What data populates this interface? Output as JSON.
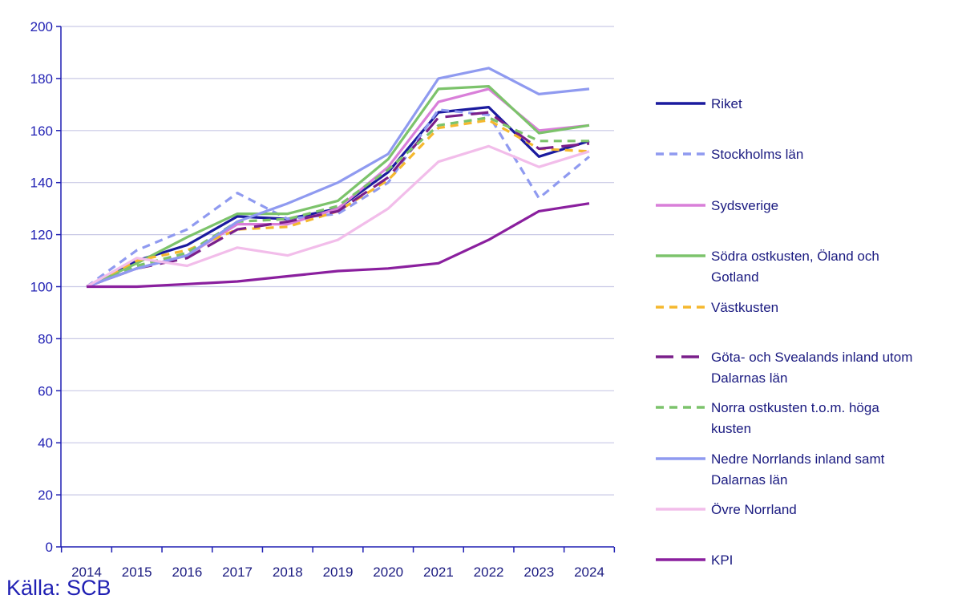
{
  "source": "Källa: SCB",
  "chart_data": {
    "type": "line",
    "title": "",
    "xlabel": "",
    "ylabel": "",
    "ylim": [
      0,
      200
    ],
    "yticks": [
      0,
      20,
      40,
      60,
      80,
      100,
      120,
      140,
      160,
      180,
      200
    ],
    "x": [
      "2014",
      "2015",
      "2016",
      "2017",
      "2018",
      "2019",
      "2020",
      "2021",
      "2022",
      "2023",
      "2024"
    ],
    "grid": "horizontal",
    "legend_position": "right",
    "series": [
      {
        "name": "Riket",
        "color": "#1a1a9e",
        "dash": "solid",
        "values": [
          100,
          110,
          116,
          127,
          126,
          130,
          144,
          167,
          169,
          150,
          156
        ]
      },
      {
        "name": "Stockholms län",
        "color": "#8f9af0",
        "dash": "dashed",
        "values": [
          100,
          114,
          122,
          136,
          126,
          128,
          140,
          168,
          166,
          134,
          150
        ]
      },
      {
        "name": "Sydsverige",
        "color": "#d97fd9",
        "dash": "solid",
        "values": [
          100,
          107,
          112,
          124,
          124,
          130,
          146,
          171,
          176,
          160,
          162
        ]
      },
      {
        "name": "Södra ostkusten, Öland och Gotland",
        "color": "#7cc36b",
        "dash": "solid",
        "values": [
          100,
          109,
          119,
          128,
          128,
          133,
          149,
          176,
          177,
          159,
          162
        ]
      },
      {
        "name": "Västkusten",
        "color": "#f5b82e",
        "dash": "dashed",
        "values": [
          100,
          110,
          114,
          122,
          123,
          129,
          141,
          161,
          164,
          153,
          152
        ]
      },
      {
        "name": "Göta- och Svealands inland utom Dalarnas län",
        "color": "#7a1f8a",
        "dash": "longdash",
        "values": [
          100,
          107,
          111,
          122,
          125,
          129,
          142,
          165,
          167,
          153,
          155
        ]
      },
      {
        "name": "Norra ostkusten t.o.m. höga kusten",
        "color": "#7cc36b",
        "dash": "dashed",
        "values": [
          100,
          108,
          113,
          125,
          126,
          131,
          145,
          162,
          165,
          156,
          156
        ]
      },
      {
        "name": "Nedre Norrlands inland samt Dalarnas län",
        "color": "#8f9af0",
        "dash": "solid",
        "values": [
          100,
          107,
          112,
          125,
          132,
          140,
          151,
          180,
          184,
          174,
          176
        ]
      },
      {
        "name": "Övre Norrland",
        "color": "#f2bdea",
        "dash": "solid",
        "values": [
          100,
          111,
          108,
          115,
          112,
          118,
          130,
          148,
          154,
          146,
          152
        ]
      },
      {
        "name": "KPI",
        "color": "#8a1f9e",
        "dash": "solid",
        "values": [
          100,
          100,
          101,
          102,
          104,
          106,
          107,
          109,
          118,
          129,
          132
        ]
      }
    ],
    "legend": [
      {
        "label_lines": [
          "Riket"
        ]
      },
      {
        "label_lines": [
          "Stockholms län"
        ]
      },
      {
        "label_lines": [
          "Sydsverige"
        ]
      },
      {
        "label_lines": [
          "Södra ostkusten, Öland och",
          "Gotland"
        ]
      },
      {
        "label_lines": [
          "Västkusten"
        ]
      },
      {
        "label_lines": [
          "Göta- och Svealands inland utom",
          "Dalarnas län"
        ]
      },
      {
        "label_lines": [
          "Norra ostkusten t.o.m. höga",
          "kusten"
        ]
      },
      {
        "label_lines": [
          "Nedre Norrlands inland samt",
          "Dalarnas län"
        ]
      },
      {
        "label_lines": [
          "Övre Norrland"
        ]
      },
      {
        "label_lines": [
          "KPI"
        ]
      }
    ]
  }
}
